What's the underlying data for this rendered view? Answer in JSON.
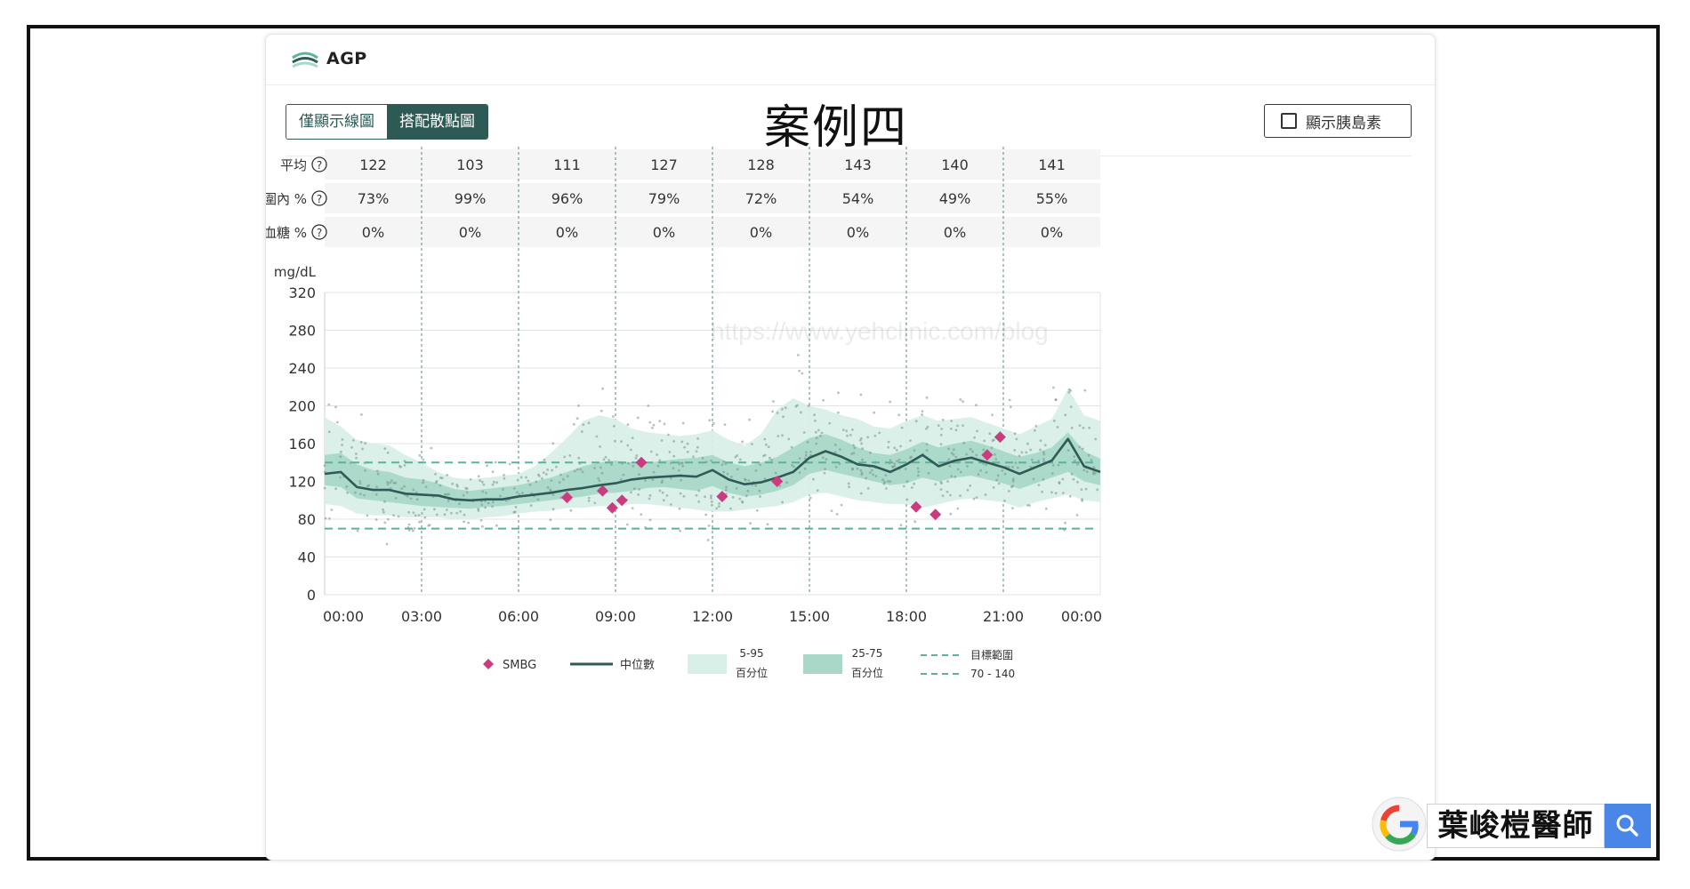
{
  "app": {
    "title": "AGP"
  },
  "view_toggle": {
    "options": [
      "僅顯示線圖",
      "搭配散點圖"
    ],
    "active_index": 1
  },
  "case_title": "案例四",
  "insulin_toggle": {
    "label": "顯示胰島素",
    "checked": false
  },
  "stats": {
    "rows": [
      {
        "label": "平均",
        "values": [
          "122",
          "103",
          "111",
          "127",
          "128",
          "143",
          "140",
          "141"
        ]
      },
      {
        "label": "範圍內 %",
        "values": [
          "73%",
          "99%",
          "96%",
          "79%",
          "72%",
          "54%",
          "49%",
          "55%"
        ]
      },
      {
        "label": "低血糖 %",
        "values": [
          "0%",
          "0%",
          "0%",
          "0%",
          "0%",
          "0%",
          "0%",
          "0%"
        ]
      }
    ]
  },
  "watermark_text": "https://www.yehclinic.com/blog",
  "brand": {
    "text": "葉峻榿醫師"
  },
  "colors": {
    "median": "#2f5a55",
    "band_5_95": "#d8efe8",
    "band_25_75": "#a9d8c8",
    "target_line": "#5bb39a",
    "smbg": "#cc3b7d",
    "scatter": "#7a8f8a",
    "primary": "#2e5a55"
  },
  "chart_data": {
    "type": "line",
    "title": "案例四",
    "ylabel": "mg/dL",
    "ylim": [
      0,
      320
    ],
    "yticks": [
      0,
      40,
      80,
      120,
      160,
      200,
      240,
      280,
      320
    ],
    "xlim": [
      0,
      24
    ],
    "xticks": [
      0,
      3,
      6,
      9,
      12,
      15,
      18,
      21,
      24
    ],
    "xtick_labels": [
      "00:00",
      "03:00",
      "06:00",
      "09:00",
      "12:00",
      "15:00",
      "18:00",
      "21:00",
      "00:00"
    ],
    "target_range": [
      70,
      140
    ],
    "grid": true,
    "legend_position": "bottom",
    "legend": [
      {
        "key": "smbg",
        "label": "SMBG"
      },
      {
        "key": "median",
        "label": "中位數"
      },
      {
        "key": "band_5_95",
        "label": "5-95\n百分位"
      },
      {
        "key": "band_25_75",
        "label": "25-75\n百分位"
      },
      {
        "key": "target",
        "label": "目標範圍\n70 - 140"
      }
    ],
    "hours": [
      0,
      0.5,
      1,
      1.5,
      2,
      2.5,
      3,
      3.5,
      4,
      4.5,
      5,
      5.5,
      6,
      6.5,
      7,
      7.5,
      8,
      8.5,
      9,
      9.5,
      10,
      10.5,
      11,
      11.5,
      12,
      12.5,
      13,
      13.5,
      14,
      14.5,
      15,
      15.5,
      16,
      16.5,
      17,
      17.5,
      18,
      18.5,
      19,
      19.5,
      20,
      20.5,
      21,
      21.5,
      22,
      22.5,
      23,
      23.5,
      24
    ],
    "median": [
      128,
      130,
      114,
      111,
      111,
      107,
      106,
      105,
      101,
      100,
      101,
      101,
      104,
      106,
      108,
      111,
      113,
      116,
      118,
      122,
      124,
      125,
      126,
      125,
      132,
      122,
      117,
      119,
      124,
      130,
      145,
      152,
      146,
      138,
      136,
      130,
      138,
      148,
      136,
      142,
      145,
      140,
      135,
      128,
      135,
      142,
      165,
      136,
      130
    ],
    "p25": [
      116,
      114,
      102,
      100,
      98,
      96,
      94,
      93,
      92,
      91,
      93,
      94,
      96,
      98,
      100,
      102,
      104,
      107,
      108,
      110,
      113,
      114,
      112,
      110,
      115,
      108,
      104,
      106,
      110,
      116,
      128,
      132,
      128,
      124,
      120,
      116,
      118,
      124,
      120,
      124,
      126,
      122,
      118,
      112,
      118,
      124,
      130,
      120,
      116
    ],
    "p75": [
      148,
      150,
      138,
      132,
      130,
      124,
      122,
      118,
      112,
      110,
      112,
      114,
      116,
      120,
      124,
      130,
      136,
      140,
      142,
      140,
      140,
      142,
      144,
      145,
      148,
      140,
      136,
      140,
      146,
      156,
      166,
      170,
      164,
      156,
      150,
      148,
      154,
      162,
      156,
      160,
      163,
      158,
      152,
      146,
      150,
      156,
      172,
      152,
      144
    ],
    "p5": [
      96,
      94,
      86,
      84,
      84,
      82,
      82,
      82,
      80,
      80,
      82,
      83,
      86,
      88,
      89,
      92,
      92,
      94,
      94,
      96,
      96,
      94,
      92,
      90,
      88,
      88,
      90,
      92,
      94,
      98,
      106,
      108,
      104,
      100,
      98,
      96,
      96,
      92,
      96,
      100,
      102,
      100,
      98,
      92,
      98,
      102,
      106,
      100,
      98
    ],
    "p95": [
      188,
      178,
      164,
      160,
      158,
      148,
      140,
      130,
      124,
      122,
      124,
      126,
      128,
      136,
      150,
      166,
      184,
      190,
      186,
      176,
      172,
      170,
      168,
      170,
      174,
      164,
      158,
      170,
      196,
      208,
      200,
      196,
      190,
      186,
      178,
      176,
      184,
      190,
      184,
      186,
      188,
      182,
      176,
      170,
      178,
      186,
      218,
      190,
      184
    ],
    "smbg": [
      {
        "x": 7.5,
        "y": 103
      },
      {
        "x": 8.6,
        "y": 110
      },
      {
        "x": 8.9,
        "y": 92
      },
      {
        "x": 9.2,
        "y": 100
      },
      {
        "x": 9.8,
        "y": 140
      },
      {
        "x": 12.3,
        "y": 104
      },
      {
        "x": 14.0,
        "y": 120
      },
      {
        "x": 18.3,
        "y": 93
      },
      {
        "x": 18.9,
        "y": 85
      },
      {
        "x": 20.5,
        "y": 148
      },
      {
        "x": 20.9,
        "y": 167
      }
    ]
  }
}
